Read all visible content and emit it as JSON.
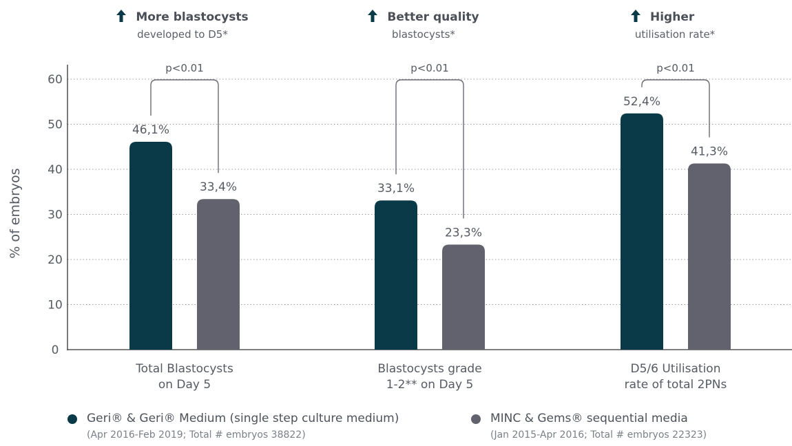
{
  "colors": {
    "geri": "#0a3a47",
    "minc": "#62626e",
    "axis": "#333333",
    "grid": "#9a9a9a",
    "text": "#555a63"
  },
  "callouts": [
    {
      "icon": "up-arrow-icon",
      "head": "More blastocysts",
      "sub": "developed to D5*"
    },
    {
      "icon": "up-arrow-icon",
      "head": "Better quality",
      "sub": "blastocysts*"
    },
    {
      "icon": "up-arrow-icon",
      "head": "Higher",
      "sub": "utilisation rate*"
    }
  ],
  "chart_data": {
    "type": "bar",
    "ylabel": "% of embryos",
    "ylim": [
      0,
      60
    ],
    "yticks": [
      0,
      10,
      20,
      30,
      40,
      50,
      60
    ],
    "grid": true,
    "categories": [
      [
        "Total Blastocysts",
        "on Day 5"
      ],
      [
        "Blastocysts grade",
        "1-2** on Day 5"
      ],
      [
        "D5/6 Utilisation",
        "rate of total 2PNs"
      ]
    ],
    "series": [
      {
        "name": "Geri® & Geri® Medium (single step culture medium)",
        "values": [
          46.1,
          33.1,
          52.4
        ],
        "labels": [
          "46,1%",
          "33,1%",
          "52,4%"
        ]
      },
      {
        "name": "MINC & Gems® sequential media",
        "values": [
          33.4,
          23.3,
          41.3
        ],
        "labels": [
          "33,4%",
          "23,3%",
          "41,3%"
        ]
      }
    ],
    "significance": [
      "p<0.01",
      "p<0.01",
      "p<0.01"
    ]
  },
  "legend": [
    {
      "label": "Geri® & Geri® Medium (single step culture medium)",
      "sub": "(Apr 2016-Feb 2019; Total # embryos 38822)"
    },
    {
      "label": "MINC & Gems® sequential media",
      "sub": "(Jan 2015-Apr 2016; Total # embryos 22323)"
    }
  ]
}
